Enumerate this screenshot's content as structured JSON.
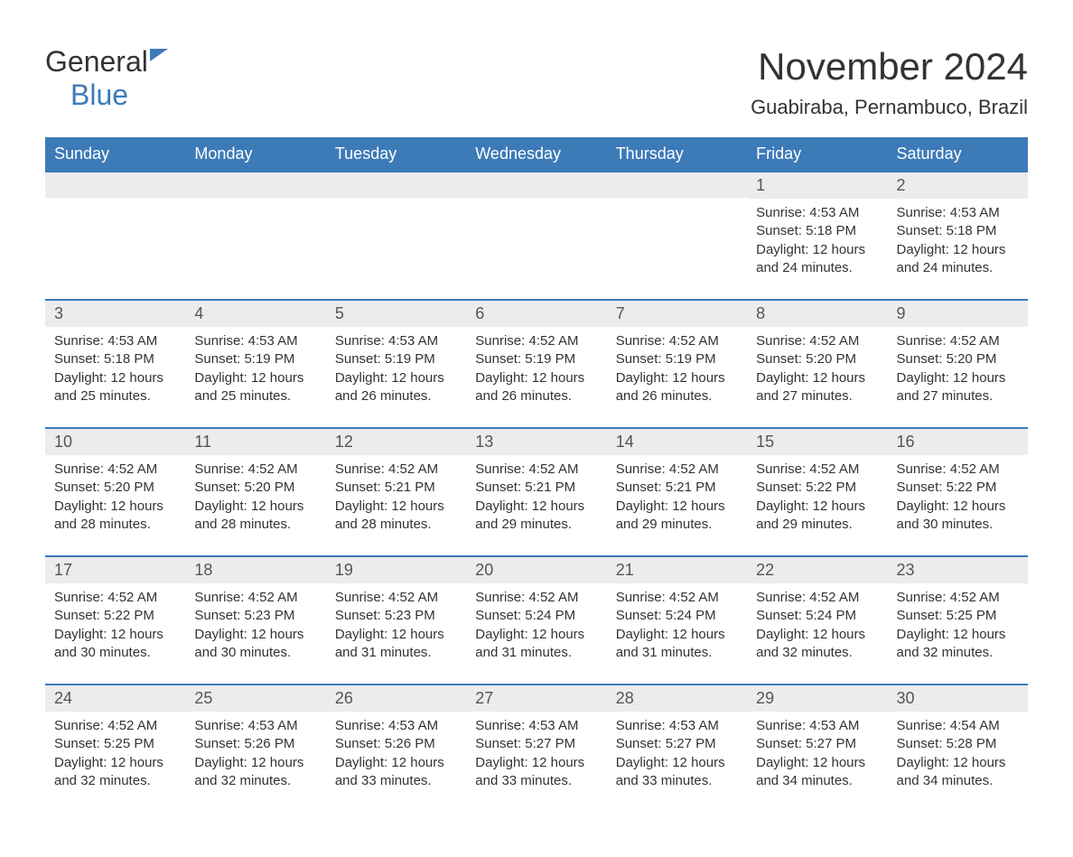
{
  "logo": {
    "text_general": "General",
    "text_blue": "Blue"
  },
  "header": {
    "month_title": "November 2024",
    "location": "Guabiraba, Pernambuco, Brazil"
  },
  "colors": {
    "header_bg": "#3d7ab8",
    "header_text": "#ffffff",
    "day_number_bg": "#ececec",
    "text_primary": "#333333",
    "row_border": "#3d7ab8"
  },
  "typography": {
    "month_title_fontsize": 42,
    "location_fontsize": 22,
    "day_header_fontsize": 18,
    "day_number_fontsize": 18,
    "body_fontsize": 15
  },
  "calendar": {
    "day_headers": [
      "Sunday",
      "Monday",
      "Tuesday",
      "Wednesday",
      "Thursday",
      "Friday",
      "Saturday"
    ],
    "weeks": [
      [
        {
          "day": "",
          "sunrise": "",
          "sunset": "",
          "daylight": ""
        },
        {
          "day": "",
          "sunrise": "",
          "sunset": "",
          "daylight": ""
        },
        {
          "day": "",
          "sunrise": "",
          "sunset": "",
          "daylight": ""
        },
        {
          "day": "",
          "sunrise": "",
          "sunset": "",
          "daylight": ""
        },
        {
          "day": "",
          "sunrise": "",
          "sunset": "",
          "daylight": ""
        },
        {
          "day": "1",
          "sunrise": "Sunrise: 4:53 AM",
          "sunset": "Sunset: 5:18 PM",
          "daylight": "Daylight: 12 hours and 24 minutes."
        },
        {
          "day": "2",
          "sunrise": "Sunrise: 4:53 AM",
          "sunset": "Sunset: 5:18 PM",
          "daylight": "Daylight: 12 hours and 24 minutes."
        }
      ],
      [
        {
          "day": "3",
          "sunrise": "Sunrise: 4:53 AM",
          "sunset": "Sunset: 5:18 PM",
          "daylight": "Daylight: 12 hours and 25 minutes."
        },
        {
          "day": "4",
          "sunrise": "Sunrise: 4:53 AM",
          "sunset": "Sunset: 5:19 PM",
          "daylight": "Daylight: 12 hours and 25 minutes."
        },
        {
          "day": "5",
          "sunrise": "Sunrise: 4:53 AM",
          "sunset": "Sunset: 5:19 PM",
          "daylight": "Daylight: 12 hours and 26 minutes."
        },
        {
          "day": "6",
          "sunrise": "Sunrise: 4:52 AM",
          "sunset": "Sunset: 5:19 PM",
          "daylight": "Daylight: 12 hours and 26 minutes."
        },
        {
          "day": "7",
          "sunrise": "Sunrise: 4:52 AM",
          "sunset": "Sunset: 5:19 PM",
          "daylight": "Daylight: 12 hours and 26 minutes."
        },
        {
          "day": "8",
          "sunrise": "Sunrise: 4:52 AM",
          "sunset": "Sunset: 5:20 PM",
          "daylight": "Daylight: 12 hours and 27 minutes."
        },
        {
          "day": "9",
          "sunrise": "Sunrise: 4:52 AM",
          "sunset": "Sunset: 5:20 PM",
          "daylight": "Daylight: 12 hours and 27 minutes."
        }
      ],
      [
        {
          "day": "10",
          "sunrise": "Sunrise: 4:52 AM",
          "sunset": "Sunset: 5:20 PM",
          "daylight": "Daylight: 12 hours and 28 minutes."
        },
        {
          "day": "11",
          "sunrise": "Sunrise: 4:52 AM",
          "sunset": "Sunset: 5:20 PM",
          "daylight": "Daylight: 12 hours and 28 minutes."
        },
        {
          "day": "12",
          "sunrise": "Sunrise: 4:52 AM",
          "sunset": "Sunset: 5:21 PM",
          "daylight": "Daylight: 12 hours and 28 minutes."
        },
        {
          "day": "13",
          "sunrise": "Sunrise: 4:52 AM",
          "sunset": "Sunset: 5:21 PM",
          "daylight": "Daylight: 12 hours and 29 minutes."
        },
        {
          "day": "14",
          "sunrise": "Sunrise: 4:52 AM",
          "sunset": "Sunset: 5:21 PM",
          "daylight": "Daylight: 12 hours and 29 minutes."
        },
        {
          "day": "15",
          "sunrise": "Sunrise: 4:52 AM",
          "sunset": "Sunset: 5:22 PM",
          "daylight": "Daylight: 12 hours and 29 minutes."
        },
        {
          "day": "16",
          "sunrise": "Sunrise: 4:52 AM",
          "sunset": "Sunset: 5:22 PM",
          "daylight": "Daylight: 12 hours and 30 minutes."
        }
      ],
      [
        {
          "day": "17",
          "sunrise": "Sunrise: 4:52 AM",
          "sunset": "Sunset: 5:22 PM",
          "daylight": "Daylight: 12 hours and 30 minutes."
        },
        {
          "day": "18",
          "sunrise": "Sunrise: 4:52 AM",
          "sunset": "Sunset: 5:23 PM",
          "daylight": "Daylight: 12 hours and 30 minutes."
        },
        {
          "day": "19",
          "sunrise": "Sunrise: 4:52 AM",
          "sunset": "Sunset: 5:23 PM",
          "daylight": "Daylight: 12 hours and 31 minutes."
        },
        {
          "day": "20",
          "sunrise": "Sunrise: 4:52 AM",
          "sunset": "Sunset: 5:24 PM",
          "daylight": "Daylight: 12 hours and 31 minutes."
        },
        {
          "day": "21",
          "sunrise": "Sunrise: 4:52 AM",
          "sunset": "Sunset: 5:24 PM",
          "daylight": "Daylight: 12 hours and 31 minutes."
        },
        {
          "day": "22",
          "sunrise": "Sunrise: 4:52 AM",
          "sunset": "Sunset: 5:24 PM",
          "daylight": "Daylight: 12 hours and 32 minutes."
        },
        {
          "day": "23",
          "sunrise": "Sunrise: 4:52 AM",
          "sunset": "Sunset: 5:25 PM",
          "daylight": "Daylight: 12 hours and 32 minutes."
        }
      ],
      [
        {
          "day": "24",
          "sunrise": "Sunrise: 4:52 AM",
          "sunset": "Sunset: 5:25 PM",
          "daylight": "Daylight: 12 hours and 32 minutes."
        },
        {
          "day": "25",
          "sunrise": "Sunrise: 4:53 AM",
          "sunset": "Sunset: 5:26 PM",
          "daylight": "Daylight: 12 hours and 32 minutes."
        },
        {
          "day": "26",
          "sunrise": "Sunrise: 4:53 AM",
          "sunset": "Sunset: 5:26 PM",
          "daylight": "Daylight: 12 hours and 33 minutes."
        },
        {
          "day": "27",
          "sunrise": "Sunrise: 4:53 AM",
          "sunset": "Sunset: 5:27 PM",
          "daylight": "Daylight: 12 hours and 33 minutes."
        },
        {
          "day": "28",
          "sunrise": "Sunrise: 4:53 AM",
          "sunset": "Sunset: 5:27 PM",
          "daylight": "Daylight: 12 hours and 33 minutes."
        },
        {
          "day": "29",
          "sunrise": "Sunrise: 4:53 AM",
          "sunset": "Sunset: 5:27 PM",
          "daylight": "Daylight: 12 hours and 34 minutes."
        },
        {
          "day": "30",
          "sunrise": "Sunrise: 4:54 AM",
          "sunset": "Sunset: 5:28 PM",
          "daylight": "Daylight: 12 hours and 34 minutes."
        }
      ]
    ]
  }
}
